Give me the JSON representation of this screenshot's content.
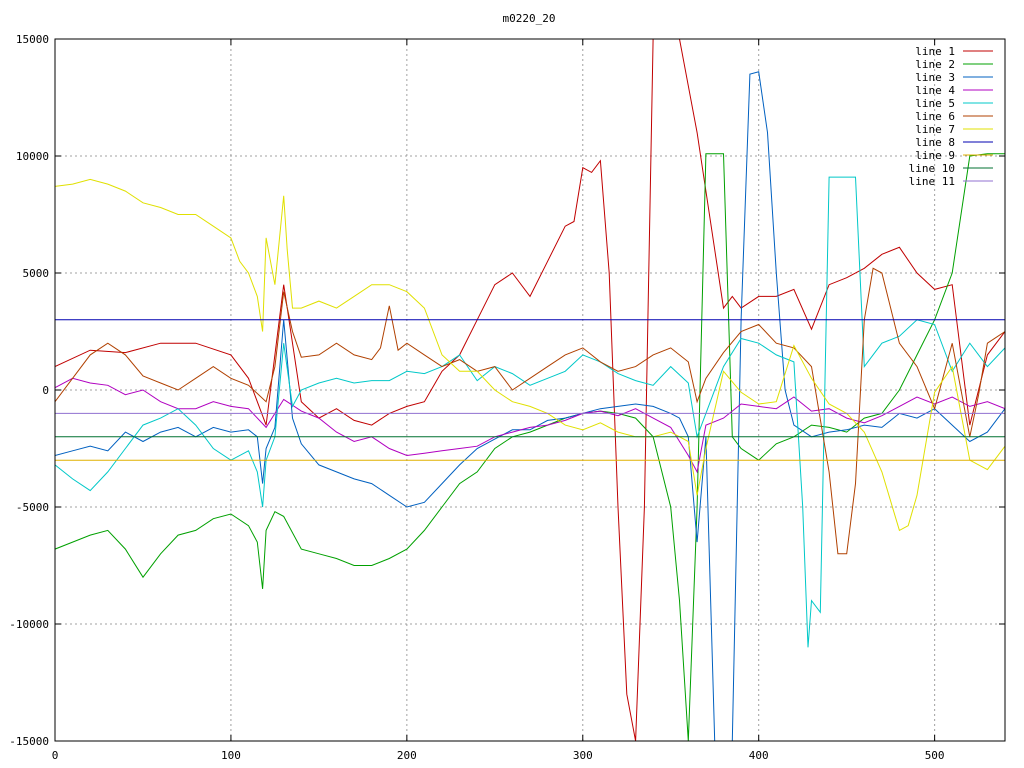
{
  "chart_data": {
    "type": "line",
    "title": "m0220_20",
    "xlabel": "",
    "ylabel": "",
    "xlim": [
      0,
      540
    ],
    "ylim": [
      -15000,
      15000
    ],
    "x_ticks": [
      0,
      100,
      200,
      300,
      400,
      500
    ],
    "y_ticks": [
      -15000,
      -10000,
      -5000,
      0,
      5000,
      10000,
      15000
    ],
    "grid": true,
    "legend_position": "top-right",
    "series": [
      {
        "name": "line 1",
        "color": "#c00000",
        "x": [
          0,
          20,
          40,
          60,
          80,
          100,
          110,
          120,
          130,
          140,
          150,
          160,
          170,
          180,
          190,
          200,
          210,
          220,
          230,
          240,
          250,
          260,
          270,
          280,
          290,
          295,
          300,
          305,
          310,
          315,
          320,
          325,
          330,
          335,
          340,
          345,
          350,
          355,
          360,
          365,
          370,
          375,
          380,
          385,
          390,
          400,
          410,
          420,
          430,
          440,
          450,
          460,
          470,
          480,
          490,
          500,
          510,
          520,
          530,
          540
        ],
        "y": [
          1000,
          1700,
          1600,
          2000,
          2000,
          1500,
          500,
          -1500,
          4500,
          -500,
          -1200,
          -800,
          -1300,
          -1500,
          -1000,
          -700,
          -500,
          800,
          1500,
          3000,
          4500,
          5000,
          4000,
          5500,
          7000,
          7200,
          9500,
          9300,
          9800,
          5000,
          -5000,
          -13000,
          -15000,
          -5000,
          15000,
          15000,
          15000,
          15000,
          13000,
          11000,
          8500,
          6000,
          3500,
          4000,
          3500,
          4000,
          4000,
          4300,
          2600,
          4500,
          4800,
          5200,
          5800,
          6100,
          5000,
          4300,
          4500,
          -1500,
          1500,
          2500
        ]
      },
      {
        "name": "line 2",
        "color": "#00a000",
        "x": [
          0,
          10,
          20,
          30,
          40,
          50,
          60,
          70,
          80,
          90,
          100,
          110,
          115,
          118,
          120,
          125,
          130,
          140,
          150,
          160,
          170,
          180,
          190,
          200,
          210,
          220,
          230,
          240,
          250,
          260,
          270,
          280,
          290,
          300,
          310,
          320,
          330,
          340,
          350,
          355,
          360,
          365,
          370,
          375,
          380,
          385,
          390,
          400,
          410,
          420,
          430,
          440,
          450,
          460,
          470,
          480,
          490,
          500,
          510,
          520,
          530,
          540
        ],
        "y": [
          -6800,
          -6500,
          -6200,
          -6000,
          -6800,
          -8000,
          -7000,
          -6200,
          -6000,
          -5500,
          -5300,
          -5800,
          -6500,
          -8500,
          -6000,
          -5200,
          -5400,
          -6800,
          -7000,
          -7200,
          -7500,
          -7500,
          -7200,
          -6800,
          -6000,
          -5000,
          -4000,
          -3500,
          -2500,
          -2000,
          -1800,
          -1500,
          -1200,
          -1000,
          -900,
          -1000,
          -1200,
          -2000,
          -5000,
          -9000,
          -15000,
          -5000,
          10100,
          10100,
          10100,
          -2000,
          -2500,
          -3000,
          -2300,
          -2000,
          -1500,
          -1600,
          -1800,
          -1200,
          -1000,
          0,
          1500,
          3000,
          5000,
          10000,
          10100,
          10100
        ]
      },
      {
        "name": "line 3",
        "color": "#0060c0",
        "x": [
          0,
          10,
          20,
          30,
          40,
          50,
          60,
          70,
          80,
          90,
          100,
          110,
          115,
          118,
          120,
          125,
          130,
          135,
          140,
          150,
          160,
          170,
          180,
          190,
          200,
          210,
          220,
          230,
          240,
          250,
          260,
          270,
          280,
          290,
          300,
          310,
          320,
          330,
          340,
          350,
          355,
          360,
          365,
          370,
          375,
          380,
          385,
          390,
          395,
          400,
          405,
          410,
          415,
          420,
          430,
          440,
          450,
          460,
          470,
          480,
          490,
          500,
          510,
          520,
          530,
          540
        ],
        "y": [
          -2800,
          -2600,
          -2400,
          -2600,
          -1800,
          -2200,
          -1800,
          -1600,
          -2000,
          -1600,
          -1800,
          -1700,
          -2000,
          -4000,
          -2500,
          -1600,
          3000,
          -1200,
          -2300,
          -3200,
          -3500,
          -3800,
          -4000,
          -4500,
          -5000,
          -4800,
          -4000,
          -3200,
          -2500,
          -2100,
          -1700,
          -1700,
          -1300,
          -1200,
          -1000,
          -800,
          -700,
          -600,
          -700,
          -1000,
          -1200,
          -2000,
          -6500,
          -2000,
          -15000,
          -15000,
          -15000,
          3000,
          13500,
          13600,
          11000,
          5000,
          0,
          -1500,
          -2000,
          -1800,
          -1700,
          -1500,
          -1600,
          -1000,
          -1200,
          -800,
          -1500,
          -2200,
          -1800,
          -800
        ]
      },
      {
        "name": "line 4",
        "color": "#b000c0",
        "x": [
          0,
          10,
          20,
          30,
          40,
          50,
          60,
          70,
          80,
          90,
          100,
          110,
          120,
          130,
          140,
          150,
          160,
          170,
          180,
          190,
          200,
          210,
          220,
          230,
          240,
          250,
          260,
          270,
          280,
          290,
          300,
          310,
          320,
          330,
          340,
          350,
          360,
          365,
          370,
          380,
          390,
          400,
          410,
          420,
          430,
          440,
          450,
          460,
          470,
          480,
          490,
          500,
          510,
          520,
          530,
          540
        ],
        "y": [
          100,
          500,
          300,
          200,
          -200,
          0,
          -500,
          -800,
          -800,
          -500,
          -700,
          -800,
          -1600,
          -400,
          -900,
          -1200,
          -1800,
          -2200,
          -2000,
          -2500,
          -2800,
          -2700,
          -2600,
          -2500,
          -2400,
          -2000,
          -1800,
          -1600,
          -1500,
          -1300,
          -1000,
          -900,
          -1100,
          -800,
          -1200,
          -1600,
          -2800,
          -3500,
          -1500,
          -1200,
          -600,
          -700,
          -800,
          -300,
          -900,
          -800,
          -1200,
          -1400,
          -1100,
          -700,
          -300,
          -600,
          -300,
          -700,
          -500,
          -800
        ]
      },
      {
        "name": "line 5",
        "color": "#00c8c8",
        "x": [
          0,
          10,
          20,
          30,
          40,
          50,
          60,
          70,
          80,
          90,
          100,
          110,
          115,
          118,
          120,
          125,
          130,
          135,
          140,
          150,
          160,
          170,
          180,
          190,
          200,
          210,
          220,
          230,
          240,
          250,
          260,
          270,
          280,
          290,
          300,
          310,
          320,
          330,
          340,
          350,
          360,
          365,
          370,
          380,
          390,
          400,
          410,
          420,
          425,
          428,
          430,
          435,
          440,
          445,
          450,
          455,
          460,
          470,
          480,
          490,
          500,
          510,
          520,
          530,
          540
        ],
        "y": [
          -3200,
          -3800,
          -4300,
          -3500,
          -2500,
          -1500,
          -1200,
          -800,
          -1500,
          -2500,
          -3000,
          -2600,
          -3500,
          -5000,
          -3000,
          -2000,
          2000,
          -700,
          0,
          300,
          500,
          300,
          400,
          400,
          800,
          700,
          1000,
          1500,
          400,
          1000,
          700,
          200,
          500,
          800,
          1500,
          1200,
          700,
          400,
          200,
          1000,
          300,
          -2000,
          -1000,
          1000,
          2200,
          2000,
          1500,
          1200,
          -5000,
          -11000,
          -9000,
          -9500,
          9100,
          9100,
          9100,
          9100,
          1000,
          2000,
          2300,
          3000,
          2800,
          800,
          2000,
          1000,
          1800
        ]
      },
      {
        "name": "line 6",
        "color": "#b04000",
        "x": [
          0,
          10,
          20,
          30,
          40,
          50,
          60,
          70,
          80,
          90,
          100,
          110,
          120,
          125,
          130,
          135,
          140,
          150,
          160,
          170,
          180,
          185,
          190,
          195,
          200,
          210,
          220,
          230,
          240,
          250,
          260,
          270,
          280,
          290,
          300,
          310,
          320,
          330,
          340,
          350,
          360,
          365,
          370,
          380,
          390,
          400,
          410,
          420,
          430,
          440,
          445,
          450,
          455,
          460,
          465,
          470,
          480,
          490,
          500,
          510,
          520,
          525,
          530,
          540
        ],
        "y": [
          -500,
          500,
          1500,
          2000,
          1500,
          600,
          300,
          0,
          500,
          1000,
          500,
          200,
          -500,
          1000,
          4200,
          2500,
          1400,
          1500,
          2000,
          1500,
          1300,
          1800,
          3600,
          1700,
          2000,
          1500,
          1000,
          1300,
          800,
          1000,
          0,
          500,
          1000,
          1500,
          1800,
          1200,
          800,
          1000,
          1500,
          1800,
          1200,
          -500,
          500,
          1600,
          2500,
          2800,
          2000,
          1800,
          1000,
          -3500,
          -7000,
          -7000,
          -4000,
          3000,
          5200,
          5000,
          2000,
          1000,
          -800,
          2000,
          -2000,
          -200,
          2000,
          2500
        ]
      },
      {
        "name": "line 7",
        "color": "#e0e000",
        "x": [
          0,
          10,
          20,
          30,
          40,
          50,
          60,
          70,
          80,
          90,
          100,
          105,
          110,
          115,
          118,
          120,
          125,
          130,
          132,
          135,
          140,
          150,
          160,
          170,
          180,
          190,
          200,
          210,
          220,
          230,
          240,
          250,
          260,
          270,
          280,
          290,
          300,
          310,
          320,
          330,
          340,
          350,
          360,
          365,
          370,
          380,
          390,
          400,
          410,
          420,
          430,
          440,
          450,
          460,
          470,
          480,
          485,
          490,
          500,
          510,
          520,
          530,
          540
        ],
        "y": [
          8700,
          8800,
          9000,
          8800,
          8500,
          8000,
          7800,
          7500,
          7500,
          7000,
          6500,
          5500,
          5000,
          4000,
          2500,
          6500,
          4500,
          8300,
          6000,
          3500,
          3500,
          3800,
          3500,
          4000,
          4500,
          4500,
          4200,
          3500,
          1500,
          800,
          800,
          0,
          -500,
          -700,
          -1000,
          -1500,
          -1700,
          -1400,
          -1800,
          -2000,
          -2000,
          -1800,
          -2200,
          -4500,
          -2500,
          800,
          -100,
          -600,
          -500,
          1900,
          500,
          -600,
          -1000,
          -1800,
          -3500,
          -6000,
          -5800,
          -4500,
          -100,
          1000,
          -3000,
          -3400,
          -2400
        ]
      },
      {
        "name": "line 8",
        "color": "#0000b0",
        "x": [
          0,
          50,
          100,
          150,
          200,
          250,
          300,
          350,
          400,
          450,
          500,
          540
        ],
        "y": [
          3000,
          3000,
          3000,
          3000,
          3000,
          3000,
          3000,
          3000,
          3000,
          3000,
          3000,
          3000
        ]
      },
      {
        "name": "line 9",
        "color": "#e0b000",
        "x": [
          0,
          50,
          100,
          150,
          200,
          250,
          300,
          350,
          400,
          450,
          500,
          540
        ],
        "y": [
          -3000,
          -3000,
          -3000,
          -3000,
          -3000,
          -3000,
          -3000,
          -3000,
          -3000,
          -3000,
          -3000,
          -3000
        ]
      },
      {
        "name": "line 10",
        "color": "#007030",
        "x": [
          0,
          50,
          100,
          150,
          200,
          250,
          300,
          350,
          400,
          450,
          500,
          540
        ],
        "y": [
          -2000,
          -2000,
          -2000,
          -2000,
          -2000,
          -2000,
          -2000,
          -2000,
          -2000,
          -2000,
          -2000,
          -2000
        ]
      },
      {
        "name": "line 11",
        "color": "#9070d0",
        "x": [
          0,
          50,
          100,
          150,
          200,
          250,
          300,
          350,
          400,
          450,
          500,
          540
        ],
        "y": [
          -1000,
          -1000,
          -1000,
          -1000,
          -1000,
          -1000,
          -1000,
          -1000,
          -1000,
          -1000,
          -1000,
          -1000
        ]
      }
    ]
  }
}
